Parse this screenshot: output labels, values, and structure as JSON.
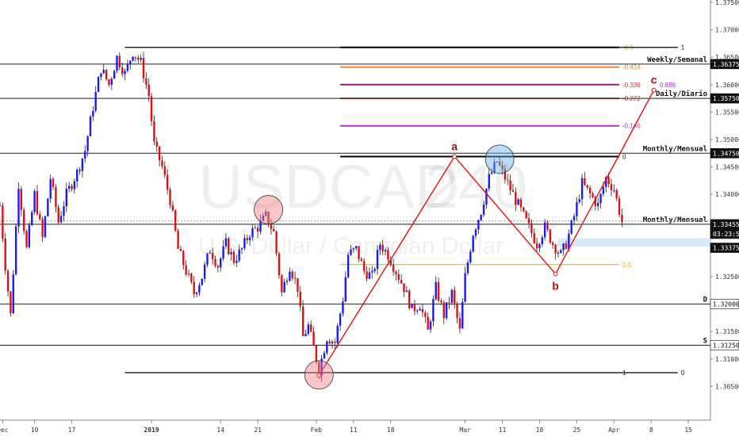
{
  "chart_data": {
    "type": "candlestick",
    "watermark": {
      "symbol": "USDCAD",
      "interval": "240",
      "description": "U.S. Dollar / Canadian Dollar"
    },
    "ylim": [
      1.3,
      1.375
    ],
    "y_ticks": [
      "1.37500",
      "1.37000",
      "1.36500",
      "1.36000",
      "1.35500",
      "1.35000",
      "1.34500",
      "1.34000",
      "1.33500",
      "1.33000",
      "1.32500",
      "1.32000",
      "1.31500",
      "1.31000",
      "1.30500"
    ],
    "x_ticks": [
      {
        "day": 0,
        "label": "Dec"
      },
      {
        "day": 6,
        "label": "10"
      },
      {
        "day": 13,
        "label": "17"
      },
      {
        "day": 28,
        "label": "2019"
      },
      {
        "day": 41,
        "label": "14"
      },
      {
        "day": 48,
        "label": "21"
      },
      {
        "day": 59,
        "label": "Feb"
      },
      {
        "day": 66,
        "label": "11"
      },
      {
        "day": 73,
        "label": "18"
      },
      {
        "day": 87,
        "label": "Mar"
      },
      {
        "day": 94,
        "label": "11"
      },
      {
        "day": 101,
        "label": "18"
      },
      {
        "day": 108,
        "label": "25"
      },
      {
        "day": 115,
        "label": "Apr"
      },
      {
        "day": 122,
        "label": "8"
      },
      {
        "day": 129,
        "label": "15"
      }
    ],
    "x_range_days": [
      -0.5,
      133
    ],
    "price_path": [
      [
        -0.5,
        1.338
      ],
      [
        0.5,
        1.327
      ],
      [
        1.5,
        1.318
      ],
      [
        3,
        1.342
      ],
      [
        4.5,
        1.33
      ],
      [
        6,
        1.34
      ],
      [
        7.5,
        1.332
      ],
      [
        9,
        1.343
      ],
      [
        10.5,
        1.335
      ],
      [
        12,
        1.34
      ],
      [
        14,
        1.344
      ],
      [
        15.5,
        1.348
      ],
      [
        17,
        1.356
      ],
      [
        18.5,
        1.363
      ],
      [
        20,
        1.36
      ],
      [
        21.5,
        1.365
      ],
      [
        23,
        1.362
      ],
      [
        24.5,
        1.366
      ],
      [
        26,
        1.364
      ],
      [
        27.5,
        1.358
      ],
      [
        28.5,
        1.349
      ],
      [
        30,
        1.345
      ],
      [
        31.5,
        1.339
      ],
      [
        33,
        1.33
      ],
      [
        34.5,
        1.326
      ],
      [
        36,
        1.322
      ],
      [
        37.5,
        1.325
      ],
      [
        39,
        1.33
      ],
      [
        40.5,
        1.327
      ],
      [
        42,
        1.331
      ],
      [
        43.5,
        1.328
      ],
      [
        45,
        1.33
      ],
      [
        46.5,
        1.333
      ],
      [
        48,
        1.334
      ],
      [
        49.5,
        1.336
      ],
      [
        51,
        1.333
      ],
      [
        52.5,
        1.322
      ],
      [
        54,
        1.327
      ],
      [
        55.5,
        1.323
      ],
      [
        56.5,
        1.314
      ],
      [
        57.5,
        1.316
      ],
      [
        58.5,
        1.312
      ],
      [
        59.5,
        1.308
      ],
      [
        61,
        1.314
      ],
      [
        62.5,
        1.313
      ],
      [
        64,
        1.321
      ],
      [
        65,
        1.329
      ],
      [
        66.5,
        1.33
      ],
      [
        68,
        1.326
      ],
      [
        69.5,
        1.325
      ],
      [
        71,
        1.331
      ],
      [
        72.5,
        1.329
      ],
      [
        74,
        1.326
      ],
      [
        75.5,
        1.323
      ],
      [
        77,
        1.319
      ],
      [
        78.5,
        1.32
      ],
      [
        80,
        1.315
      ],
      [
        81.5,
        1.323
      ],
      [
        83,
        1.318
      ],
      [
        84.5,
        1.322
      ],
      [
        86,
        1.315
      ],
      [
        87,
        1.325
      ],
      [
        88.5,
        1.333
      ],
      [
        90,
        1.337
      ],
      [
        91.5,
        1.343
      ],
      [
        93,
        1.346
      ],
      [
        94.5,
        1.343
      ],
      [
        96,
        1.34
      ],
      [
        97.5,
        1.337
      ],
      [
        99,
        1.334
      ],
      [
        100.5,
        1.331
      ],
      [
        102,
        1.334
      ],
      [
        103.5,
        1.331
      ],
      [
        105,
        1.329
      ],
      [
        106,
        1.331
      ],
      [
        107.5,
        1.336
      ],
      [
        109,
        1.342
      ],
      [
        110.5,
        1.34
      ],
      [
        112,
        1.338
      ],
      [
        113.5,
        1.343
      ],
      [
        115,
        1.341
      ],
      [
        116.5,
        1.335
      ]
    ],
    "horizontal_levels": [
      {
        "price": 1.36375,
        "label": "Weekly/Semanal",
        "tag": "1.36375",
        "style": "dark"
      },
      {
        "price": 1.3575,
        "label": "Daily/Diario",
        "tag": "1.35750",
        "style": "dark"
      },
      {
        "price": 1.3475,
        "label": "Monthly/Mensual",
        "tag": "1.34750",
        "style": "dark"
      },
      {
        "price": 1.33455,
        "label": "Monthly/Mensual",
        "tag": "1.33455",
        "style": "dark"
      },
      {
        "price": 1.32,
        "label": "D",
        "tag": "1.32000",
        "style": "white"
      },
      {
        "price": 1.3125,
        "label": "S",
        "tag": "1.31250",
        "style": "white"
      }
    ],
    "current_price": {
      "price": 1.33455,
      "countdown": "03:23:52"
    },
    "zone": {
      "top": 1.332,
      "bottom": 1.3305,
      "tag": "1.33375"
    },
    "fibonacci": [
      {
        "label": "-0.5",
        "price": 1.3668,
        "color": "#e8a317",
        "linecolor": "#000000"
      },
      {
        "label": "-0.414",
        "price": 1.3632,
        "color": "#f08030",
        "linecolor": "#f08030"
      },
      {
        "label": "-0.336",
        "price": 1.36,
        "color": "#cc3333",
        "linecolor": "#8b1a8b"
      },
      {
        "label": "-0.272",
        "price": 1.3575,
        "color": "#cc3333",
        "linecolor": "#cc3333"
      },
      {
        "label": "-0.146",
        "price": 1.3525,
        "color": "#b030c0",
        "linecolor": "#b030c0"
      },
      {
        "label": "0",
        "price": 1.3469,
        "color": "#111111",
        "linecolor": "#000000"
      },
      {
        "label": "0.5",
        "price": 1.3272,
        "color": "#e8a317",
        "linecolor": "#e8a317"
      },
      {
        "label": "1",
        "price": 1.3075,
        "color": "#111111",
        "linecolor": "#000000"
      }
    ],
    "top_black_line": {
      "price": 1.3668,
      "label": "1"
    },
    "bottom_label": "0",
    "harmonic_points": [
      {
        "day": 59.5,
        "price": 1.307,
        "label": ""
      },
      {
        "day": 85,
        "price": 1.3469,
        "label": "a"
      },
      {
        "day": 104,
        "price": 1.3255,
        "label": "b"
      },
      {
        "day": 122.5,
        "price": 1.359,
        "label": "c"
      }
    ],
    "ratio_label": {
      "text": "0.886",
      "price": 1.36
    },
    "circles": [
      {
        "day": 50,
        "price": 1.3372,
        "color": "#f08080"
      },
      {
        "day": 59.5,
        "price": 1.3071,
        "color": "#f08080"
      },
      {
        "day": 93.5,
        "price": 1.3464,
        "color": "#6ab0e8"
      }
    ]
  }
}
